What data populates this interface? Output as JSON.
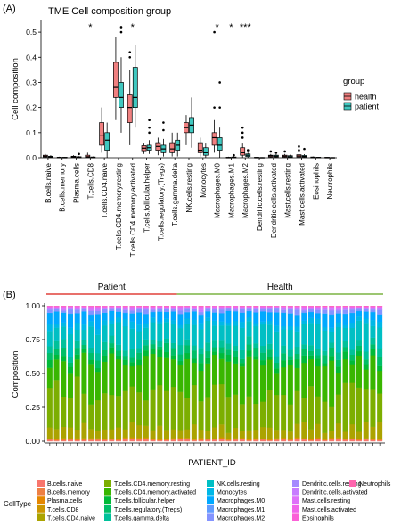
{
  "chart_data": [
    {
      "panel_label": "(A)",
      "type": "box",
      "title": "TME Cell composition group",
      "ylabel": "Cell composition",
      "ylim": [
        0,
        0.55
      ],
      "yticks": [
        0.0,
        0.1,
        0.2,
        0.3,
        0.4,
        0.5
      ],
      "ytick_labels": [
        "0.0",
        "0.1",
        "0.2",
        "0.3",
        "0.4",
        "0.5"
      ],
      "legend_title": "group",
      "legend_position": "right",
      "series": [
        {
          "name": "health",
          "color": "#F08080"
        },
        {
          "name": "patient",
          "color": "#40C8C0"
        }
      ],
      "categories": [
        "B.cells.naive",
        "B.cells.memory",
        "Plasma.cells",
        "T.cells.CD8",
        "T.cells.CD4.naive",
        "T.cells.CD4.memory.resting",
        "T.cells.CD4.memory.activated",
        "T.cells.follicular.helper",
        "T.cells.regulatory.(Tregs)",
        "T.cells.gamma.delta",
        "NK.cells.resting",
        "Monocytes",
        "Macrophages.M0",
        "Macrophages.M1",
        "Macrophages.M2",
        "Dendritic.cells.resting",
        "Dendritic.cells.activated",
        "Mast.cells.resting",
        "Mast.cells.activated",
        "Eosinophils",
        "Neutrophils"
      ],
      "significance": [
        "",
        "",
        "",
        "*",
        "",
        "",
        "*",
        "",
        "",
        "",
        "",
        "",
        "*",
        "*",
        "***",
        "",
        "",
        "",
        "",
        "",
        ""
      ],
      "boxes": {
        "health": [
          {
            "min": 0,
            "q1": 0.003,
            "median": 0.006,
            "q3": 0.01,
            "max": 0.015,
            "outliers": []
          },
          {
            "min": 0,
            "q1": 0,
            "median": 0.001,
            "q3": 0.002,
            "max": 0.004,
            "outliers": []
          },
          {
            "min": 0,
            "q1": 0.001,
            "median": 0.004,
            "q3": 0.006,
            "max": 0.01,
            "outliers": []
          },
          {
            "min": 0,
            "q1": 0.001,
            "median": 0.004,
            "q3": 0.01,
            "max": 0.02,
            "outliers": []
          },
          {
            "min": 0.02,
            "q1": 0.05,
            "median": 0.09,
            "q3": 0.14,
            "max": 0.2,
            "outliers": []
          },
          {
            "min": 0.15,
            "q1": 0.24,
            "median": 0.28,
            "q3": 0.38,
            "max": 0.48,
            "outliers": []
          },
          {
            "min": 0.05,
            "q1": 0.14,
            "median": 0.2,
            "q3": 0.25,
            "max": 0.35,
            "outliers": [
              0.4,
              0.42
            ]
          },
          {
            "min": 0.015,
            "q1": 0.028,
            "median": 0.038,
            "q3": 0.048,
            "max": 0.06,
            "outliers": []
          },
          {
            "min": 0.01,
            "q1": 0.03,
            "median": 0.045,
            "q3": 0.06,
            "max": 0.08,
            "outliers": []
          },
          {
            "min": 0.005,
            "q1": 0.02,
            "median": 0.035,
            "q3": 0.06,
            "max": 0.1,
            "outliers": []
          },
          {
            "min": 0.05,
            "q1": 0.1,
            "median": 0.12,
            "q3": 0.14,
            "max": 0.17,
            "outliers": []
          },
          {
            "min": 0.005,
            "q1": 0.02,
            "median": 0.03,
            "q3": 0.06,
            "max": 0.08,
            "outliers": []
          },
          {
            "min": 0.02,
            "q1": 0.05,
            "median": 0.08,
            "q3": 0.1,
            "max": 0.15,
            "outliers": [
              0.2,
              0.5
            ]
          },
          {
            "min": 0,
            "q1": 0,
            "median": 0,
            "q3": 0.002,
            "max": 0.004,
            "outliers": []
          },
          {
            "min": 0,
            "q1": 0.01,
            "median": 0.02,
            "q3": 0.04,
            "max": 0.06,
            "outliers": [
              0.08,
              0.1,
              0.12
            ]
          },
          {
            "min": 0,
            "q1": 0,
            "median": 0,
            "q3": 0.002,
            "max": 0.003,
            "outliers": []
          },
          {
            "min": 0,
            "q1": 0.003,
            "median": 0.007,
            "q3": 0.01,
            "max": 0.015,
            "outliers": [
              0.025
            ]
          },
          {
            "min": 0,
            "q1": 0.002,
            "median": 0.006,
            "q3": 0.01,
            "max": 0.015,
            "outliers": [
              0.025
            ]
          },
          {
            "min": 0,
            "q1": 0.003,
            "median": 0.007,
            "q3": 0.012,
            "max": 0.02,
            "outliers": [
              0.03,
              0.045
            ]
          },
          {
            "min": 0,
            "q1": 0,
            "median": 0.001,
            "q3": 0.003,
            "max": 0.005,
            "outliers": []
          },
          {
            "min": 0,
            "q1": 0,
            "median": 0,
            "q3": 0.002,
            "max": 0.003,
            "outliers": []
          }
        ],
        "patient": [
          {
            "min": 0,
            "q1": 0.001,
            "median": 0.003,
            "q3": 0.006,
            "max": 0.01,
            "outliers": []
          },
          {
            "min": 0,
            "q1": 0,
            "median": 0,
            "q3": 0.002,
            "max": 0.003,
            "outliers": []
          },
          {
            "min": 0,
            "q1": 0,
            "median": 0.002,
            "q3": 0.004,
            "max": 0.006,
            "outliers": [
              0.015
            ]
          },
          {
            "min": 0,
            "q1": 0,
            "median": 0.001,
            "q3": 0.003,
            "max": 0.005,
            "outliers": []
          },
          {
            "min": 0,
            "q1": 0.03,
            "median": 0.07,
            "q3": 0.1,
            "max": 0.14,
            "outliers": []
          },
          {
            "min": 0.1,
            "q1": 0.2,
            "median": 0.24,
            "q3": 0.3,
            "max": 0.4,
            "outliers": [
              0.5,
              0.52
            ]
          },
          {
            "min": 0.12,
            "q1": 0.2,
            "median": 0.24,
            "q3": 0.36,
            "max": 0.45,
            "outliers": []
          },
          {
            "min": 0.015,
            "q1": 0.03,
            "median": 0.04,
            "q3": 0.05,
            "max": 0.07,
            "outliers": [
              0.1,
              0.12,
              0.15
            ]
          },
          {
            "min": 0.005,
            "q1": 0.02,
            "median": 0.035,
            "q3": 0.05,
            "max": 0.075,
            "outliers": [
              0.11,
              0.14
            ]
          },
          {
            "min": 0.005,
            "q1": 0.03,
            "median": 0.05,
            "q3": 0.07,
            "max": 0.1,
            "outliers": []
          },
          {
            "min": 0.04,
            "q1": 0.1,
            "median": 0.13,
            "q3": 0.16,
            "max": 0.24,
            "outliers": []
          },
          {
            "min": 0,
            "q1": 0.01,
            "median": 0.02,
            "q3": 0.04,
            "max": 0.06,
            "outliers": []
          },
          {
            "min": 0,
            "q1": 0.03,
            "median": 0.05,
            "q3": 0.08,
            "max": 0.12,
            "outliers": [
              0.2,
              0.3
            ]
          },
          {
            "min": 0,
            "q1": 0,
            "median": 0.001,
            "q3": 0.003,
            "max": 0.005,
            "outliers": [
              0.01
            ]
          },
          {
            "min": 0,
            "q1": 0.005,
            "median": 0.01,
            "q3": 0.015,
            "max": 0.02,
            "outliers": [
              0.03
            ]
          },
          {
            "min": 0,
            "q1": 0,
            "median": 0,
            "q3": 0.001,
            "max": 0.002,
            "outliers": []
          },
          {
            "min": 0,
            "q1": 0.003,
            "median": 0.006,
            "q3": 0.01,
            "max": 0.015,
            "outliers": [
              0.02
            ]
          },
          {
            "min": 0,
            "q1": 0.001,
            "median": 0.004,
            "q3": 0.008,
            "max": 0.012,
            "outliers": []
          },
          {
            "min": 0,
            "q1": 0.002,
            "median": 0.005,
            "q3": 0.009,
            "max": 0.014,
            "outliers": [
              0.035
            ]
          },
          {
            "min": 0,
            "q1": 0,
            "median": 0.001,
            "q3": 0.002,
            "max": 0.003,
            "outliers": []
          },
          {
            "min": 0,
            "q1": 0,
            "median": 0,
            "q3": 0.001,
            "max": 0.002,
            "outliers": []
          }
        ]
      }
    },
    {
      "panel_label": "(B)",
      "type": "bar",
      "stacked": true,
      "xlabel": "PATIENT_ID",
      "ylabel": "Composition",
      "ylim": [
        0,
        1
      ],
      "yticks": [
        0.0,
        0.25,
        0.5,
        0.75,
        1.0
      ],
      "ytick_labels": [
        "0.00",
        "0.25",
        "0.50",
        "0.75",
        "1.00"
      ],
      "group_labels": [
        {
          "label": "Patient",
          "color": "#E0403A",
          "count": 19
        },
        {
          "label": "Health",
          "color": "#7CB342",
          "count": 30
        }
      ],
      "legend_title": "CellType",
      "legend_position": "bottom",
      "cell_types": [
        {
          "name": "B.cells.naive",
          "color": "#F8766D"
        },
        {
          "name": "B.cells.memory",
          "color": "#EE8044"
        },
        {
          "name": "Plasma.cells",
          "color": "#E58700"
        },
        {
          "name": "T.cells.CD8",
          "color": "#CD9600"
        },
        {
          "name": "T.cells.CD4.naive",
          "color": "#ABA300"
        },
        {
          "name": "T.cells.CD4.memory.resting",
          "color": "#7CAE00"
        },
        {
          "name": "T.cells.CD4.memory.activated",
          "color": "#39B600"
        },
        {
          "name": "T.cells.follicular.helper",
          "color": "#00BA38"
        },
        {
          "name": "T.cells.regulatory.(Tregs)",
          "color": "#00BE67"
        },
        {
          "name": "T.cells.gamma.delta",
          "color": "#00C19A"
        },
        {
          "name": "NK.cells.resting",
          "color": "#00BFC4"
        },
        {
          "name": "Monocytes",
          "color": "#00B8E7"
        },
        {
          "name": "Macrophages.M0",
          "color": "#00A9FF"
        },
        {
          "name": "Macrophages.M1",
          "color": "#619CFF"
        },
        {
          "name": "Macrophages.M2",
          "color": "#8494FF"
        },
        {
          "name": "Dendritic.cells.resting",
          "color": "#A58AFF"
        },
        {
          "name": "Dendritic.cells.activated",
          "color": "#C77CFF"
        },
        {
          "name": "Mast.cells.resting",
          "color": "#DE71F9"
        },
        {
          "name": "Mast.cells.activated",
          "color": "#F066EA"
        },
        {
          "name": "Eosinophils",
          "color": "#FB61D7"
        },
        {
          "name": "Neutrophils",
          "color": "#FF65AE"
        }
      ],
      "mean_composition": [
        0.01,
        0.003,
        0.004,
        0.005,
        0.08,
        0.27,
        0.22,
        0.04,
        0.045,
        0.05,
        0.13,
        0.035,
        0.07,
        0.003,
        0.02,
        0.002,
        0.008,
        0.006,
        0.008,
        0.002,
        0.002
      ],
      "sample_count": 49
    }
  ]
}
